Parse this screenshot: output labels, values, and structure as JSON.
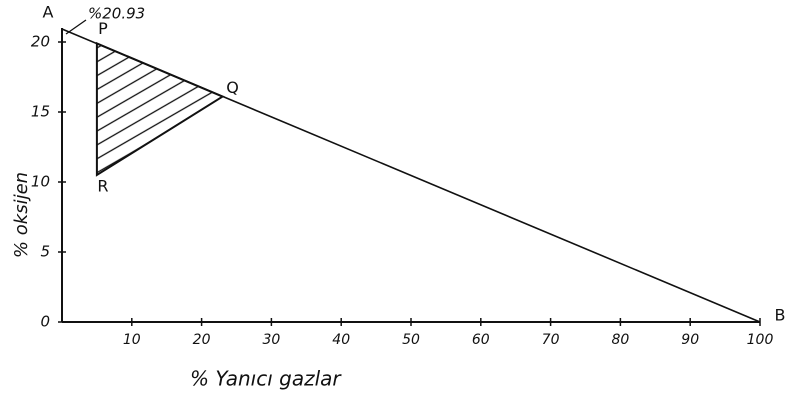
{
  "chart_data": {
    "type": "line",
    "annotation": "%20.93",
    "x_label": "% Yanıcı gazlar",
    "y_label": "% oksijen",
    "xlim": [
      0,
      100
    ],
    "ylim": [
      0,
      21
    ],
    "xticks": [
      10,
      20,
      30,
      40,
      50,
      60,
      70,
      80,
      90,
      100
    ],
    "yticks": [
      0,
      5,
      10,
      15,
      20
    ],
    "color": "#111111",
    "points": [
      {
        "name": "A",
        "x": 0,
        "y": 20.93
      },
      {
        "name": "B",
        "x": 100,
        "y": 0
      },
      {
        "name": "P",
        "x": 5,
        "y": 19.9
      },
      {
        "name": "Q",
        "x": 23,
        "y": 16.1
      },
      {
        "name": "R",
        "x": 5,
        "y": 10.5
      }
    ]
  }
}
